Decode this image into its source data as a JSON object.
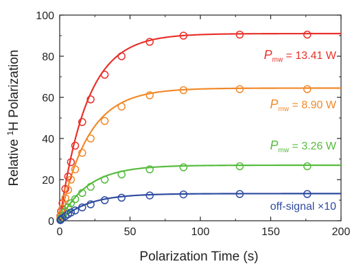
{
  "chart_data": {
    "type": "scatter",
    "xlabel": "Polarization Time (s)",
    "ylabel": "Relative 1H Polarization",
    "ylabel_parts": {
      "pre": "Relative ",
      "sup": "1",
      "post": "H Polarization"
    },
    "xlim": [
      0,
      200
    ],
    "ylim": [
      0,
      100
    ],
    "x_ticks": [
      0,
      50,
      100,
      150,
      200
    ],
    "y_ticks": [
      0,
      20,
      40,
      60,
      80,
      100
    ],
    "grid": false,
    "fit_curves": true,
    "series": [
      {
        "name": "P_mw = 13.41 W",
        "label": {
          "sym": "P",
          "sub": "mw",
          "text": " = 13.41 W"
        },
        "color": "#e8302a",
        "fit": {
          "amplitude": 91,
          "time_constant_s": 19.3
        },
        "points": [
          [
            0.5,
            2.4
          ],
          [
            1,
            4.6
          ],
          [
            2,
            8.5
          ],
          [
            4,
            15.5
          ],
          [
            6,
            21.5
          ],
          [
            8,
            28.5
          ],
          [
            11,
            36.5
          ],
          [
            16,
            48
          ],
          [
            22,
            59
          ],
          [
            32,
            71
          ],
          [
            44,
            80
          ],
          [
            64,
            87
          ],
          [
            88,
            90
          ],
          [
            128,
            90.5
          ],
          [
            176,
            90.5
          ]
        ]
      },
      {
        "name": "P_mw = 8.90 W",
        "label": {
          "sym": "P",
          "sub": "mw",
          "text": " = 8.90 W"
        },
        "color": "#f2892a",
        "fit": {
          "amplitude": 64.5,
          "time_constant_s": 20.0
        },
        "points": [
          [
            0.5,
            1.5
          ],
          [
            1,
            3
          ],
          [
            2,
            6
          ],
          [
            4,
            11
          ],
          [
            6,
            15
          ],
          [
            8,
            20
          ],
          [
            11,
            25
          ],
          [
            16,
            33
          ],
          [
            22,
            40
          ],
          [
            32,
            48.5
          ],
          [
            44,
            55.5
          ],
          [
            64,
            61
          ],
          [
            88,
            63.5
          ],
          [
            128,
            64
          ],
          [
            176,
            64
          ]
        ]
      },
      {
        "name": "P_mw = 3.26 W",
        "label": {
          "sym": "P",
          "sub": "mw",
          "text": " = 3.26 W"
        },
        "color": "#55bb3c",
        "fit": {
          "amplitude": 27,
          "time_constant_s": 20.0
        },
        "points": [
          [
            0.5,
            0.6
          ],
          [
            1,
            1.3
          ],
          [
            2,
            2.6
          ],
          [
            4,
            4.5
          ],
          [
            6,
            6.5
          ],
          [
            8,
            8.5
          ],
          [
            11,
            10.5
          ],
          [
            16,
            13.5
          ],
          [
            22,
            16.5
          ],
          [
            32,
            20
          ],
          [
            44,
            22.5
          ],
          [
            64,
            25
          ],
          [
            88,
            26
          ],
          [
            128,
            26.5
          ],
          [
            176,
            26.5
          ]
        ]
      },
      {
        "name": "off-signal ×10",
        "label": {
          "sym": "",
          "sub": "",
          "text": "off-signal ×10"
        },
        "color": "#2d4aa0",
        "fit": {
          "amplitude": 13.2,
          "time_constant_s": 20.0
        },
        "points": [
          [
            0.5,
            0.3
          ],
          [
            1,
            0.7
          ],
          [
            2,
            1.3
          ],
          [
            4,
            2.2
          ],
          [
            6,
            3.2
          ],
          [
            8,
            4
          ],
          [
            11,
            5
          ],
          [
            16,
            6.5
          ],
          [
            22,
            8
          ],
          [
            32,
            10
          ],
          [
            44,
            11.2
          ],
          [
            64,
            12.3
          ],
          [
            88,
            12.8
          ],
          [
            128,
            13
          ],
          [
            176,
            13
          ]
        ]
      }
    ]
  }
}
